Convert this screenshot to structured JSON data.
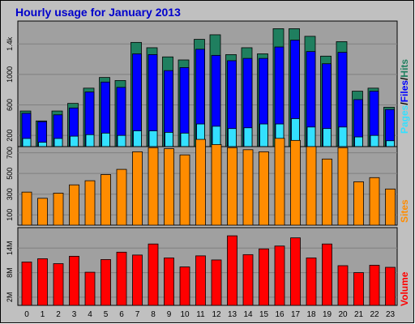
{
  "colors": {
    "outer_bg": "#c0c0c0",
    "panel_bg": "#a0a0a0",
    "title": "#0000cc",
    "hits": "#1f7f5f",
    "files": "#0000ff",
    "pages": "#33e0ff",
    "sites": "#ff8c00",
    "volume": "#ff0000",
    "grid": "#808080"
  },
  "chart_data": [
    {
      "type": "bar",
      "title": "Hourly usage for January 2013",
      "categories": [
        "0",
        "1",
        "2",
        "3",
        "4",
        "5",
        "6",
        "7",
        "8",
        "9",
        "10",
        "11",
        "12",
        "13",
        "14",
        "15",
        "16",
        "17",
        "18",
        "19",
        "20",
        "21",
        "22",
        "23"
      ],
      "y_ticks": [
        "200",
        "600",
        "1000",
        "1.4k"
      ],
      "ylim": [
        0,
        1700
      ],
      "ylabel_parts": [
        "Pages",
        "Files",
        "Hits"
      ],
      "series": [
        {
          "name": "Hits",
          "values": [
            520,
            390,
            520,
            620,
            820,
            960,
            920,
            1420,
            1350,
            1230,
            1190,
            1460,
            1520,
            1260,
            1350,
            1270,
            1600,
            1600,
            1500,
            1240,
            1430,
            780,
            820,
            570
          ]
        },
        {
          "name": "Files",
          "values": [
            490,
            380,
            470,
            560,
            770,
            900,
            830,
            1270,
            1260,
            1050,
            1090,
            1330,
            1250,
            1180,
            1210,
            1210,
            1360,
            1450,
            1300,
            1140,
            1290,
            670,
            780,
            540
          ]
        },
        {
          "name": "Pages",
          "values": [
            160,
            110,
            160,
            190,
            210,
            230,
            200,
            260,
            260,
            240,
            230,
            350,
            320,
            290,
            300,
            350,
            350,
            420,
            310,
            290,
            310,
            180,
            200,
            130
          ]
        }
      ]
    },
    {
      "type": "bar",
      "categories": [
        "0",
        "1",
        "2",
        "3",
        "4",
        "5",
        "6",
        "7",
        "8",
        "9",
        "10",
        "11",
        "12",
        "13",
        "14",
        "15",
        "16",
        "17",
        "18",
        "19",
        "20",
        "21",
        "22",
        "23"
      ],
      "y_ticks": [
        "100",
        "300",
        "500",
        "700"
      ],
      "ylim": [
        0,
        760
      ],
      "ylabel": "Sites",
      "series": [
        {
          "name": "Sites",
          "values": [
            320,
            260,
            310,
            390,
            430,
            490,
            540,
            710,
            750,
            740,
            680,
            830,
            780,
            750,
            730,
            710,
            840,
            820,
            760,
            640,
            750,
            420,
            460,
            350
          ]
        }
      ]
    },
    {
      "type": "bar",
      "categories": [
        "0",
        "1",
        "2",
        "3",
        "4",
        "5",
        "6",
        "7",
        "8",
        "9",
        "10",
        "11",
        "12",
        "13",
        "14",
        "15",
        "16",
        "17",
        "18",
        "19",
        "20",
        "21",
        "22",
        "23"
      ],
      "y_ticks": [
        "2M",
        "8M",
        "14M"
      ],
      "ylim": [
        0,
        19
      ],
      "ylabel": "Volume",
      "series": [
        {
          "name": "Volume",
          "values": [
            10.6,
            11.4,
            10.2,
            12.0,
            8.1,
            11.2,
            13.0,
            12.3,
            15.0,
            11.6,
            9.4,
            12.1,
            11.1,
            17.0,
            12.4,
            13.8,
            14.5,
            16.5,
            11.6,
            15.0,
            9.7,
            8.0,
            9.8,
            9.3
          ]
        }
      ]
    }
  ]
}
